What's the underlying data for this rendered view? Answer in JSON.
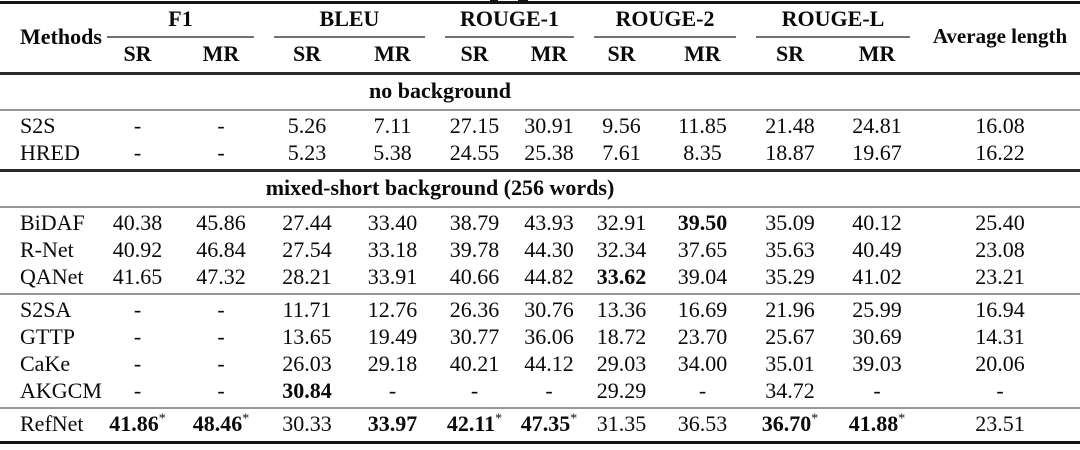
{
  "colors": {
    "text": "#0a0a0a",
    "heavy_rule": "#1f1f1f",
    "light_rule": "#979797"
  },
  "header": {
    "methods_label": "Methods",
    "avg_label": "Average length",
    "groups": [
      {
        "label": "F1",
        "sr": "SR",
        "mr": "MR"
      },
      {
        "label": "BLEU",
        "sr": "SR",
        "mr": "MR"
      },
      {
        "label": "ROUGE-1",
        "sr": "SR",
        "mr": "MR"
      },
      {
        "label": "ROUGE-2",
        "sr": "SR",
        "mr": "MR"
      },
      {
        "label": "ROUGE-L",
        "sr": "SR",
        "mr": "MR"
      }
    ]
  },
  "sections": [
    {
      "title": "no background",
      "groups": [
        {
          "rows": [
            {
              "method": "S2S",
              "cells": [
                {
                  "v": "-"
                },
                {
                  "v": "-"
                },
                {
                  "v": "5.26"
                },
                {
                  "v": "7.11"
                },
                {
                  "v": "27.15"
                },
                {
                  "v": "30.91"
                },
                {
                  "v": "9.56"
                },
                {
                  "v": "11.85"
                },
                {
                  "v": "21.48"
                },
                {
                  "v": "24.81"
                },
                {
                  "v": "16.08"
                }
              ]
            },
            {
              "method": "HRED",
              "cells": [
                {
                  "v": "-"
                },
                {
                  "v": "-"
                },
                {
                  "v": "5.23"
                },
                {
                  "v": "5.38"
                },
                {
                  "v": "24.55"
                },
                {
                  "v": "25.38"
                },
                {
                  "v": "7.61"
                },
                {
                  "v": "8.35"
                },
                {
                  "v": "18.87"
                },
                {
                  "v": "19.67"
                },
                {
                  "v": "16.22"
                }
              ]
            }
          ]
        }
      ]
    },
    {
      "title": "mixed-short background (256 words)",
      "groups": [
        {
          "rows": [
            {
              "method": "BiDAF",
              "cells": [
                {
                  "v": "40.38"
                },
                {
                  "v": "45.86"
                },
                {
                  "v": "27.44"
                },
                {
                  "v": "33.40"
                },
                {
                  "v": "38.79"
                },
                {
                  "v": "43.93"
                },
                {
                  "v": "32.91"
                },
                {
                  "v": "39.50",
                  "b": true
                },
                {
                  "v": "35.09"
                },
                {
                  "v": "40.12"
                },
                {
                  "v": "25.40"
                }
              ]
            },
            {
              "method": "R-Net",
              "cells": [
                {
                  "v": "40.92"
                },
                {
                  "v": "46.84"
                },
                {
                  "v": "27.54"
                },
                {
                  "v": "33.18"
                },
                {
                  "v": "39.78"
                },
                {
                  "v": "44.30"
                },
                {
                  "v": "32.34"
                },
                {
                  "v": "37.65"
                },
                {
                  "v": "35.63"
                },
                {
                  "v": "40.49"
                },
                {
                  "v": "23.08"
                }
              ]
            },
            {
              "method": "QANet",
              "cells": [
                {
                  "v": "41.65"
                },
                {
                  "v": "47.32"
                },
                {
                  "v": "28.21"
                },
                {
                  "v": "33.91"
                },
                {
                  "v": "40.66"
                },
                {
                  "v": "44.82"
                },
                {
                  "v": "33.62",
                  "b": true
                },
                {
                  "v": "39.04"
                },
                {
                  "v": "35.29"
                },
                {
                  "v": "41.02"
                },
                {
                  "v": "23.21"
                }
              ]
            }
          ]
        },
        {
          "rows": [
            {
              "method": "S2SA",
              "cells": [
                {
                  "v": "-"
                },
                {
                  "v": "-"
                },
                {
                  "v": "11.71"
                },
                {
                  "v": "12.76"
                },
                {
                  "v": "26.36"
                },
                {
                  "v": "30.76"
                },
                {
                  "v": "13.36"
                },
                {
                  "v": "16.69"
                },
                {
                  "v": "21.96"
                },
                {
                  "v": "25.99"
                },
                {
                  "v": "16.94"
                }
              ]
            },
            {
              "method": "GTTP",
              "cells": [
                {
                  "v": "-"
                },
                {
                  "v": "-"
                },
                {
                  "v": "13.65"
                },
                {
                  "v": "19.49"
                },
                {
                  "v": "30.77"
                },
                {
                  "v": "36.06"
                },
                {
                  "v": "18.72"
                },
                {
                  "v": "23.70"
                },
                {
                  "v": "25.67"
                },
                {
                  "v": "30.69"
                },
                {
                  "v": "14.31"
                }
              ]
            },
            {
              "method": "CaKe",
              "cells": [
                {
                  "v": "-"
                },
                {
                  "v": "-"
                },
                {
                  "v": "26.03"
                },
                {
                  "v": "29.18"
                },
                {
                  "v": "40.21"
                },
                {
                  "v": "44.12"
                },
                {
                  "v": "29.03"
                },
                {
                  "v": "34.00"
                },
                {
                  "v": "35.01"
                },
                {
                  "v": "39.03"
                },
                {
                  "v": "20.06"
                }
              ]
            },
            {
              "method": "AKGCM",
              "cells": [
                {
                  "v": "-"
                },
                {
                  "v": "-"
                },
                {
                  "v": "30.84",
                  "b": true
                },
                {
                  "v": "-"
                },
                {
                  "v": "-"
                },
                {
                  "v": "-"
                },
                {
                  "v": "29.29"
                },
                {
                  "v": "-"
                },
                {
                  "v": "34.72"
                },
                {
                  "v": "-"
                },
                {
                  "v": "-"
                }
              ]
            }
          ]
        },
        {
          "rows": [
            {
              "method": "RefNet",
              "cells": [
                {
                  "v": "41.86",
                  "b": true,
                  "s": "*"
                },
                {
                  "v": "48.46",
                  "b": true,
                  "s": "*"
                },
                {
                  "v": "30.33"
                },
                {
                  "v": "33.97",
                  "b": true
                },
                {
                  "v": "42.11",
                  "b": true,
                  "s": "*"
                },
                {
                  "v": "47.35",
                  "b": true,
                  "s": "*"
                },
                {
                  "v": "31.35"
                },
                {
                  "v": "36.53"
                },
                {
                  "v": "36.70",
                  "b": true,
                  "s": "*"
                },
                {
                  "v": "41.88",
                  "b": true,
                  "s": "*"
                },
                {
                  "v": "23.51"
                }
              ]
            }
          ]
        }
      ]
    }
  ]
}
